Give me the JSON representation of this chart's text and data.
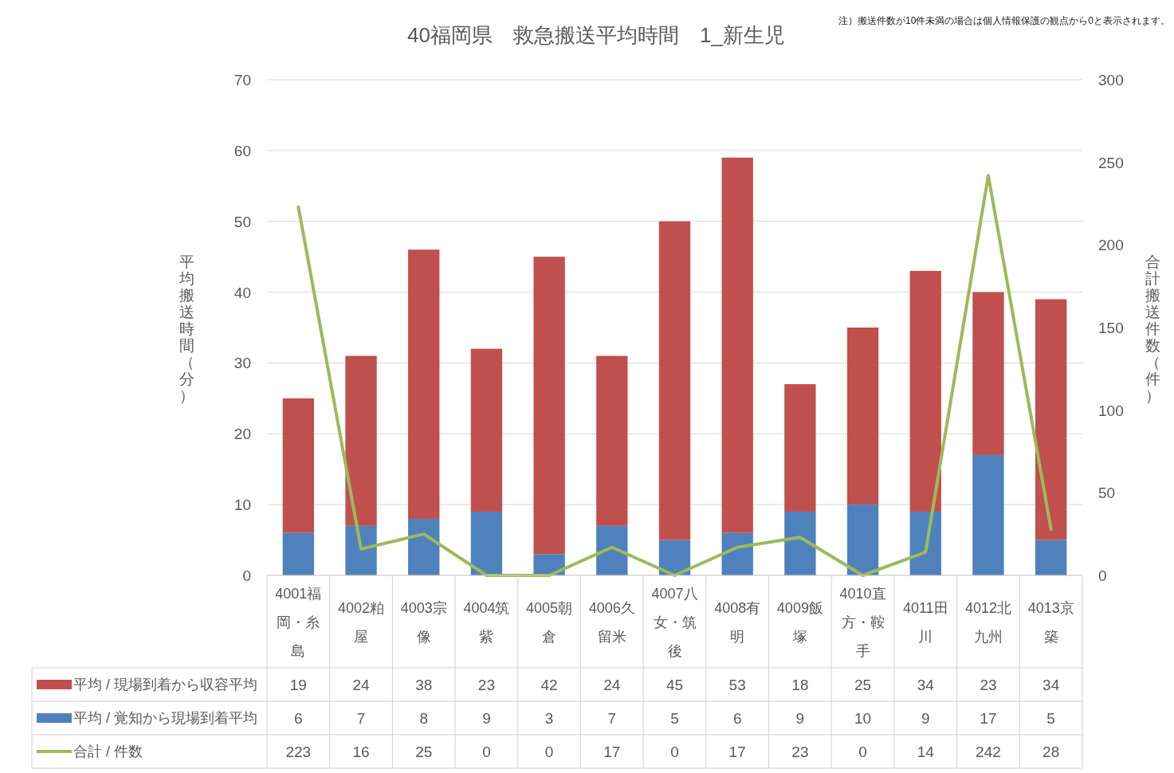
{
  "chart_data": {
    "type": "bar",
    "stacked": true,
    "title": "40福岡県　救急搬送平均時間　1_新生児",
    "ylabel": "平均搬送時間（分）",
    "y2label": "合計搬送件数（件）",
    "annotations": [
      "注）搬送件数が10件未満の場合は個人情報保護の観点から0と表示されます。"
    ],
    "categories": [
      "4001福岡・糸島",
      "4002粕屋",
      "4003宗像",
      "4004筑紫",
      "4005朝倉",
      "4006久留米",
      "4007八女・筑後",
      "4008有明",
      "4009飯塚",
      "4010直方・鞍手",
      "4011田川",
      "4012北九州",
      "4013京築"
    ],
    "series": [
      {
        "name": "平均 / 覚知から現場到着平均",
        "color": "#4f81bd",
        "values": [
          6,
          7,
          8,
          9,
          3,
          7,
          5,
          6,
          9,
          10,
          9,
          17,
          5
        ]
      },
      {
        "name": "平均 / 現場到着から収容平均",
        "color": "#c0504d",
        "values": [
          19,
          24,
          38,
          23,
          42,
          24,
          45,
          53,
          18,
          25,
          34,
          23,
          34
        ]
      },
      {
        "name": "合計 / 件数",
        "type": "line",
        "axis": "y2",
        "color": "#9bbb59",
        "values": [
          223,
          16,
          25,
          0,
          0,
          17,
          0,
          17,
          23,
          0,
          14,
          242,
          28
        ]
      }
    ],
    "ylim": [
      0,
      70
    ],
    "yticks": [
      0,
      10,
      20,
      30,
      40,
      50,
      60,
      70
    ],
    "y2lim": [
      0,
      300
    ],
    "y2ticks": [
      0,
      50,
      100,
      150,
      200,
      250,
      300
    ],
    "grid": "y",
    "data_labels": true,
    "legend": "bottom left",
    "marker": "none",
    "line_style": "solid"
  }
}
